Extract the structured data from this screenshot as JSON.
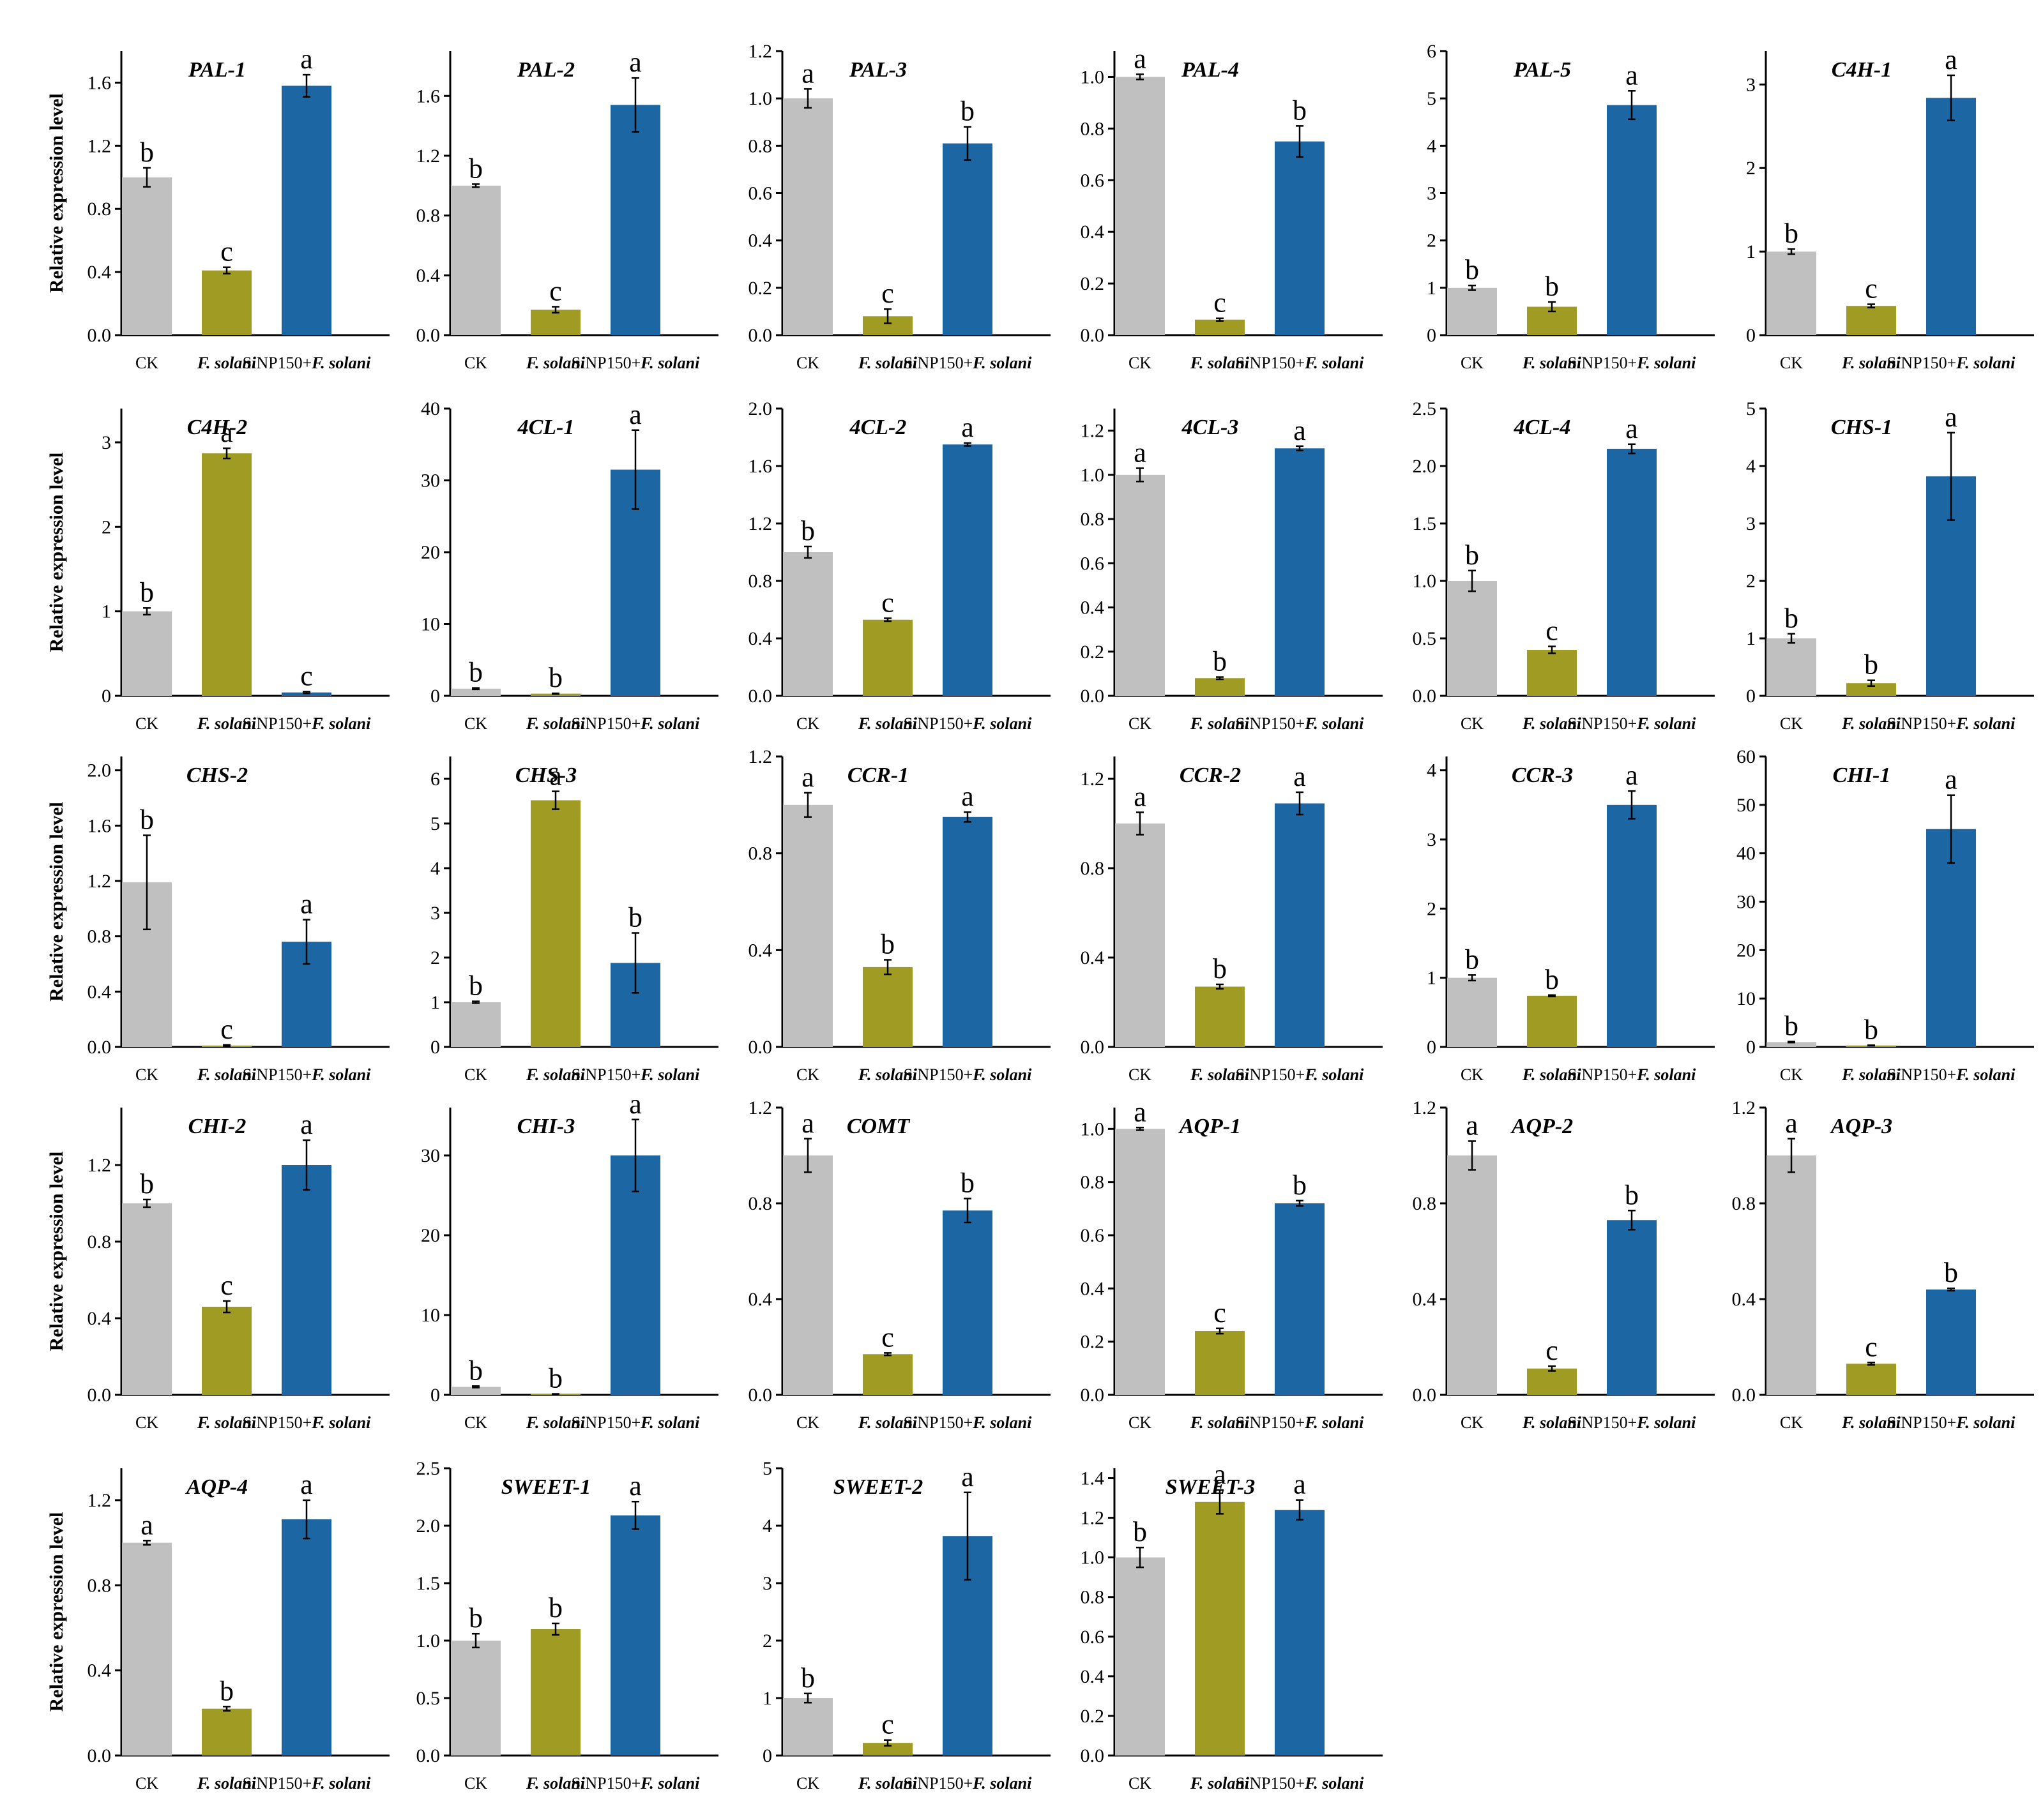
{
  "figure": {
    "y_axis_label": "Relative expression level",
    "categories": [
      "CK",
      "F. solani",
      "SiNP150+F. solani"
    ],
    "colors": [
      "#c0c0c0",
      "#a09b22",
      "#1b66a3"
    ],
    "text_color": "#000000"
  },
  "chart_data": [
    {
      "type": "bar",
      "title": "PAL-1",
      "categories": [
        "CK",
        "F. solani",
        "SiNP150+F. solani"
      ],
      "values": [
        1.0,
        0.41,
        1.58
      ],
      "errors": [
        0.06,
        0.02,
        0.07
      ],
      "letters": [
        "b",
        "c",
        "a"
      ],
      "ylim": [
        0,
        1.8
      ],
      "yticks": [
        "0.0",
        "0.4",
        "0.8",
        "1.2",
        "1.6"
      ]
    },
    {
      "type": "bar",
      "title": "PAL-2",
      "categories": [
        "CK",
        "F. solani",
        "SiNP150+F. solani"
      ],
      "values": [
        1.0,
        0.17,
        1.54
      ],
      "errors": [
        0.01,
        0.02,
        0.18
      ],
      "letters": [
        "b",
        "c",
        "a"
      ],
      "ylim": [
        0,
        1.9
      ],
      "yticks": [
        "0.0",
        "0.4",
        "0.8",
        "1.2",
        "1.6"
      ]
    },
    {
      "type": "bar",
      "title": "PAL-3",
      "categories": [
        "CK",
        "F. solani",
        "SiNP150+F. solani"
      ],
      "values": [
        1.0,
        0.08,
        0.81
      ],
      "errors": [
        0.04,
        0.03,
        0.07
      ],
      "letters": [
        "a",
        "c",
        "b"
      ],
      "ylim": [
        0,
        1.2
      ],
      "yticks": [
        "0.0",
        "0.2",
        "0.4",
        "0.6",
        "0.8",
        "1.0",
        "1.2"
      ]
    },
    {
      "type": "bar",
      "title": "PAL-4",
      "categories": [
        "CK",
        "F. solani",
        "SiNP150+F. solani"
      ],
      "values": [
        1.0,
        0.06,
        0.75
      ],
      "errors": [
        0.01,
        0.005,
        0.06
      ],
      "letters": [
        "a",
        "c",
        "b"
      ],
      "ylim": [
        0,
        1.1
      ],
      "yticks": [
        "0.0",
        "0.2",
        "0.4",
        "0.6",
        "0.8",
        "1.0"
      ]
    },
    {
      "type": "bar",
      "title": "PAL-5",
      "categories": [
        "CK",
        "F. solani",
        "SiNP150+F. solani"
      ],
      "values": [
        1.0,
        0.6,
        4.86
      ],
      "errors": [
        0.05,
        0.1,
        0.3
      ],
      "letters": [
        "b",
        "b",
        "a"
      ],
      "ylim": [
        0,
        6
      ],
      "yticks": [
        "0",
        "1",
        "2",
        "3",
        "4",
        "5",
        "6"
      ]
    },
    {
      "type": "bar",
      "title": "C4H-1",
      "categories": [
        "CK",
        "F. solani",
        "SiNP150+F. solani"
      ],
      "values": [
        1.0,
        0.35,
        2.84
      ],
      "errors": [
        0.03,
        0.02,
        0.27
      ],
      "letters": [
        "b",
        "c",
        "a"
      ],
      "ylim": [
        0,
        3.4
      ],
      "yticks": [
        "0",
        "1",
        "2",
        "3"
      ]
    },
    {
      "type": "bar",
      "title": "C4H-2",
      "categories": [
        "CK",
        "F. solani",
        "SiNP150+F. solani"
      ],
      "values": [
        1.0,
        2.87,
        0.04
      ],
      "errors": [
        0.04,
        0.06,
        0.01
      ],
      "letters": [
        "b",
        "a",
        "c"
      ],
      "ylim": [
        0,
        3.4
      ],
      "yticks": [
        "0",
        "1",
        "2",
        "3"
      ]
    },
    {
      "type": "bar",
      "title": "4CL-1",
      "categories": [
        "CK",
        "F. solani",
        "SiNP150+F. solani"
      ],
      "values": [
        1.0,
        0.3,
        31.5
      ],
      "errors": [
        0.1,
        0.05,
        5.5
      ],
      "letters": [
        "b",
        "b",
        "a"
      ],
      "ylim": [
        0,
        40
      ],
      "yticks": [
        "0",
        "10",
        "20",
        "30",
        "40"
      ]
    },
    {
      "type": "bar",
      "title": "4CL-2",
      "categories": [
        "CK",
        "F. solani",
        "SiNP150+F. solani"
      ],
      "values": [
        1.0,
        0.53,
        1.75
      ],
      "errors": [
        0.04,
        0.01,
        0.01
      ],
      "letters": [
        "b",
        "c",
        "a"
      ],
      "ylim": [
        0,
        2.0
      ],
      "yticks": [
        "0.0",
        "0.4",
        "0.8",
        "1.2",
        "1.6",
        "2.0"
      ]
    },
    {
      "type": "bar",
      "title": "4CL-3",
      "categories": [
        "CK",
        "F. solani",
        "SiNP150+F. solani"
      ],
      "values": [
        1.0,
        0.08,
        1.12
      ],
      "errors": [
        0.03,
        0.005,
        0.01
      ],
      "letters": [
        "a",
        "b",
        "a"
      ],
      "ylim": [
        0,
        1.3
      ],
      "yticks": [
        "0.0",
        "0.2",
        "0.4",
        "0.6",
        "0.8",
        "1.0",
        "1.2"
      ]
    },
    {
      "type": "bar",
      "title": "4CL-4",
      "categories": [
        "CK",
        "F. solani",
        "SiNP150+F. solani"
      ],
      "values": [
        1.0,
        0.4,
        2.15
      ],
      "errors": [
        0.09,
        0.03,
        0.04
      ],
      "letters": [
        "b",
        "c",
        "a"
      ],
      "ylim": [
        0,
        2.5
      ],
      "yticks": [
        "0.0",
        "0.5",
        "1.0",
        "1.5",
        "2.0",
        "2.5"
      ]
    },
    {
      "type": "bar",
      "title": "CHS-1",
      "categories": [
        "CK",
        "F. solani",
        "SiNP150+F. solani"
      ],
      "values": [
        1.0,
        0.22,
        3.82
      ],
      "errors": [
        0.08,
        0.05,
        0.76
      ],
      "letters": [
        "b",
        "b",
        "a"
      ],
      "ylim": [
        0,
        5
      ],
      "yticks": [
        "0",
        "1",
        "2",
        "3",
        "4",
        "5"
      ]
    },
    {
      "type": "bar",
      "title": "CHS-2",
      "categories": [
        "CK",
        "F. solani",
        "SiNP150+F. solani"
      ],
      "values": [
        1.19,
        0.01,
        0.76
      ],
      "errors": [
        0.34,
        0.005,
        0.16
      ],
      "letters": [
        "b",
        "c",
        "a"
      ],
      "ylim": [
        0,
        2.1
      ],
      "yticks": [
        "0.0",
        "0.4",
        "0.8",
        "1.2",
        "1.6",
        "2.0"
      ]
    },
    {
      "type": "bar",
      "title": "CHS-3",
      "categories": [
        "CK",
        "F. solani",
        "SiNP150+F. solani"
      ],
      "values": [
        1.0,
        5.52,
        1.88
      ],
      "errors": [
        0.02,
        0.2,
        0.67
      ],
      "letters": [
        "b",
        "a",
        "b"
      ],
      "ylim": [
        0,
        6.5
      ],
      "yticks": [
        "0",
        "1",
        "2",
        "3",
        "4",
        "5",
        "6"
      ]
    },
    {
      "type": "bar",
      "title": "CCR-1",
      "categories": [
        "CK",
        "F. solani",
        "SiNP150+F. solani"
      ],
      "values": [
        1.0,
        0.33,
        0.95
      ],
      "errors": [
        0.05,
        0.03,
        0.02
      ],
      "letters": [
        "a",
        "b",
        "a"
      ],
      "ylim": [
        0,
        1.2
      ],
      "yticks": [
        "0.0",
        "0.4",
        "0.8",
        "1.2"
      ]
    },
    {
      "type": "bar",
      "title": "CCR-2",
      "categories": [
        "CK",
        "F. solani",
        "SiNP150+F. solani"
      ],
      "values": [
        1.0,
        0.27,
        1.09
      ],
      "errors": [
        0.05,
        0.01,
        0.05
      ],
      "letters": [
        "a",
        "b",
        "a"
      ],
      "ylim": [
        0,
        1.3
      ],
      "yticks": [
        "0.0",
        "0.4",
        "0.8",
        "1.2"
      ]
    },
    {
      "type": "bar",
      "title": "CCR-3",
      "categories": [
        "CK",
        "F. solani",
        "SiNP150+F. solani"
      ],
      "values": [
        1.0,
        0.74,
        3.5
      ],
      "errors": [
        0.04,
        0.01,
        0.2
      ],
      "letters": [
        "b",
        "b",
        "a"
      ],
      "ylim": [
        0,
        4.2
      ],
      "yticks": [
        "0",
        "1",
        "2",
        "3",
        "4"
      ]
    },
    {
      "type": "bar",
      "title": "CHI-1",
      "categories": [
        "CK",
        "F. solani",
        "SiNP150+F. solani"
      ],
      "values": [
        1.0,
        0.3,
        45.0
      ],
      "errors": [
        0.1,
        0.05,
        7.0
      ],
      "letters": [
        "b",
        "b",
        "a"
      ],
      "ylim": [
        0,
        60
      ],
      "yticks": [
        "0",
        "10",
        "20",
        "30",
        "40",
        "50",
        "60"
      ]
    },
    {
      "type": "bar",
      "title": "CHI-2",
      "categories": [
        "CK",
        "F. solani",
        "SiNP150+F. solani"
      ],
      "values": [
        1.0,
        0.46,
        1.2
      ],
      "errors": [
        0.02,
        0.03,
        0.13
      ],
      "letters": [
        "b",
        "c",
        "a"
      ],
      "ylim": [
        0,
        1.5
      ],
      "yticks": [
        "0.0",
        "0.4",
        "0.8",
        "1.2"
      ]
    },
    {
      "type": "bar",
      "title": "CHI-3",
      "categories": [
        "CK",
        "F. solani",
        "SiNP150+F. solani"
      ],
      "values": [
        1.0,
        0.1,
        30.0
      ],
      "errors": [
        0.1,
        0.02,
        4.5
      ],
      "letters": [
        "b",
        "b",
        "a"
      ],
      "ylim": [
        0,
        36
      ],
      "yticks": [
        "0",
        "10",
        "20",
        "30"
      ]
    },
    {
      "type": "bar",
      "title": "COMT",
      "categories": [
        "CK",
        "F. solani",
        "SiNP150+F. solani"
      ],
      "values": [
        1.0,
        0.17,
        0.77
      ],
      "errors": [
        0.07,
        0.005,
        0.05
      ],
      "letters": [
        "a",
        "c",
        "b"
      ],
      "ylim": [
        0,
        1.2
      ],
      "yticks": [
        "0.0",
        "0.4",
        "0.8",
        "1.2"
      ]
    },
    {
      "type": "bar",
      "title": "AQP-1",
      "categories": [
        "CK",
        "F. solani",
        "SiNP150+F. solani"
      ],
      "values": [
        1.0,
        0.24,
        0.72
      ],
      "errors": [
        0.005,
        0.01,
        0.01
      ],
      "letters": [
        "a",
        "c",
        "b"
      ],
      "ylim": [
        0,
        1.08
      ],
      "yticks": [
        "0.0",
        "0.2",
        "0.4",
        "0.6",
        "0.8",
        "1.0"
      ]
    },
    {
      "type": "bar",
      "title": "AQP-2",
      "categories": [
        "CK",
        "F. solani",
        "SiNP150+F. solani"
      ],
      "values": [
        1.0,
        0.11,
        0.73
      ],
      "errors": [
        0.06,
        0.01,
        0.04
      ],
      "letters": [
        "a",
        "c",
        "b"
      ],
      "ylim": [
        0,
        1.2
      ],
      "yticks": [
        "0.0",
        "0.4",
        "0.8",
        "1.2"
      ]
    },
    {
      "type": "bar",
      "title": "AQP-3",
      "categories": [
        "CK",
        "F. solani",
        "SiNP150+F. solani"
      ],
      "values": [
        1.0,
        0.13,
        0.44
      ],
      "errors": [
        0.07,
        0.005,
        0.005
      ],
      "letters": [
        "a",
        "c",
        "b"
      ],
      "ylim": [
        0,
        1.2
      ],
      "yticks": [
        "0.0",
        "0.4",
        "0.8",
        "1.2"
      ]
    },
    {
      "type": "bar",
      "title": "AQP-4",
      "categories": [
        "CK",
        "F. solani",
        "SiNP150+F. solani"
      ],
      "values": [
        1.0,
        0.22,
        1.11
      ],
      "errors": [
        0.01,
        0.01,
        0.09
      ],
      "letters": [
        "a",
        "b",
        "a"
      ],
      "ylim": [
        0,
        1.35
      ],
      "yticks": [
        "0.0",
        "0.4",
        "0.8",
        "1.2"
      ]
    },
    {
      "type": "bar",
      "title": "SWEET-1",
      "categories": [
        "CK",
        "F. solani",
        "SiNP150+F. solani"
      ],
      "values": [
        1.0,
        1.1,
        2.09
      ],
      "errors": [
        0.06,
        0.05,
        0.12
      ],
      "letters": [
        "b",
        "b",
        "a"
      ],
      "ylim": [
        0,
        2.5
      ],
      "yticks": [
        "0.0",
        "0.5",
        "1.0",
        "1.5",
        "2.0",
        "2.5"
      ]
    },
    {
      "type": "bar",
      "title": "SWEET-2",
      "categories": [
        "CK",
        "F. solani",
        "SiNP150+F. solani"
      ],
      "values": [
        1.0,
        0.22,
        3.82
      ],
      "errors": [
        0.08,
        0.05,
        0.76
      ],
      "letters": [
        "b",
        "c",
        "a"
      ],
      "ylim": [
        0,
        5
      ],
      "yticks": [
        "0",
        "1",
        "2",
        "3",
        "4",
        "5"
      ]
    },
    {
      "type": "bar",
      "title": "SWEET-3",
      "categories": [
        "CK",
        "F. solani",
        "SiNP150+F. solani"
      ],
      "values": [
        1.0,
        1.28,
        1.24
      ],
      "errors": [
        0.05,
        0.06,
        0.05
      ],
      "letters": [
        "b",
        "a",
        "a"
      ],
      "ylim": [
        0,
        1.45
      ],
      "yticks": [
        "0.0",
        "0.2",
        "0.4",
        "0.6",
        "0.8",
        "1.0",
        "1.2",
        "1.4"
      ]
    }
  ]
}
